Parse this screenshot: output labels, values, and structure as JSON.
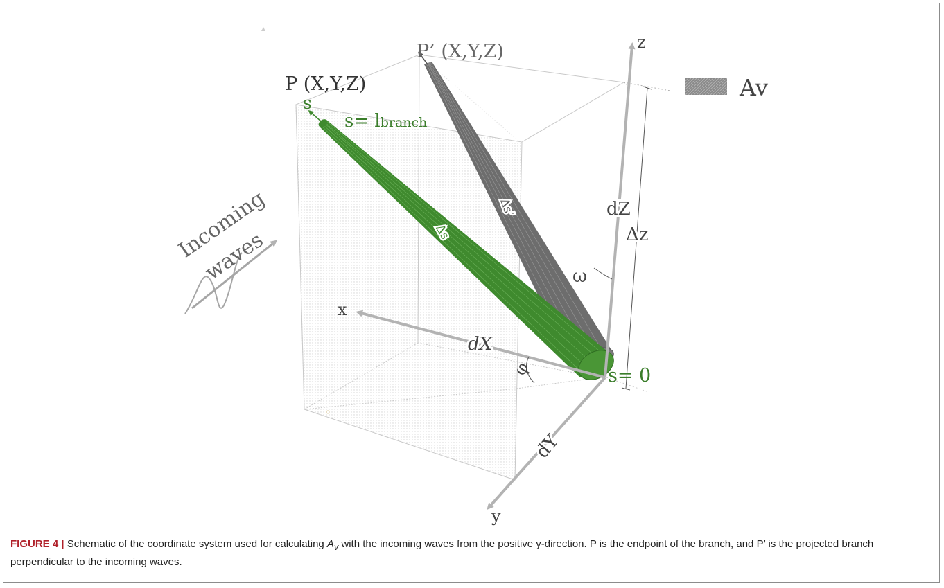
{
  "diagram": {
    "point_p": "P (X,Y,Z)",
    "point_p_prime": "P’ (X,Y,Z)",
    "s_label": "s",
    "s_end_prefix": "s= l",
    "s_end_sub": "branch",
    "s_start": "s= 0",
    "delta_s": "Δs",
    "delta_s_prime": "Δs’",
    "axis_x": "x",
    "axis_y": "y",
    "axis_z": "z",
    "dx": "dX",
    "dy": "dY",
    "dz": "dZ",
    "delta_z": "Δz",
    "omega": "ω",
    "phi": "φ",
    "legend_label": "Av",
    "incoming": "Incoming",
    "waves": "waves",
    "colors": {
      "branch_green": "#3f8a2e",
      "projected_gray": "#707070",
      "axis_gray": "#b3b3b3",
      "green_text": "#3a7d2a",
      "caption_accent": "#b0202a"
    }
  },
  "caption": {
    "label": "FIGURE 4",
    "separator": "|",
    "text_before": " Schematic of the coordinate system used for calculating ",
    "symbol": "A",
    "symbol_sub": "v",
    "text_after": " with the incoming waves from the positive y-direction. P is the endpoint of the branch, and P’ is the projected branch perpendicular to the incoming waves."
  }
}
